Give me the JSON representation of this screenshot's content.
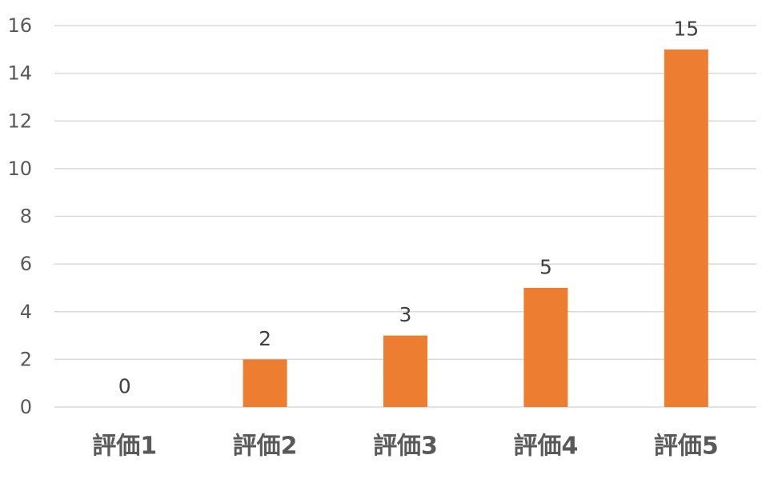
{
  "chart_data": {
    "type": "bar",
    "categories": [
      "評価1",
      "評価2",
      "評価3",
      "評価4",
      "評価5"
    ],
    "values": [
      0,
      2,
      3,
      5,
      15
    ],
    "title": "",
    "xlabel": "",
    "ylabel": "",
    "ylim": [
      0,
      16
    ],
    "yticks": [
      "0",
      "2",
      "4",
      "6",
      "8",
      "10",
      "12",
      "14",
      "16"
    ],
    "data_labels": [
      "0",
      "2",
      "3",
      "5",
      "15"
    ],
    "grid": true,
    "legend": "none",
    "bar_color": "#ed7d31"
  }
}
